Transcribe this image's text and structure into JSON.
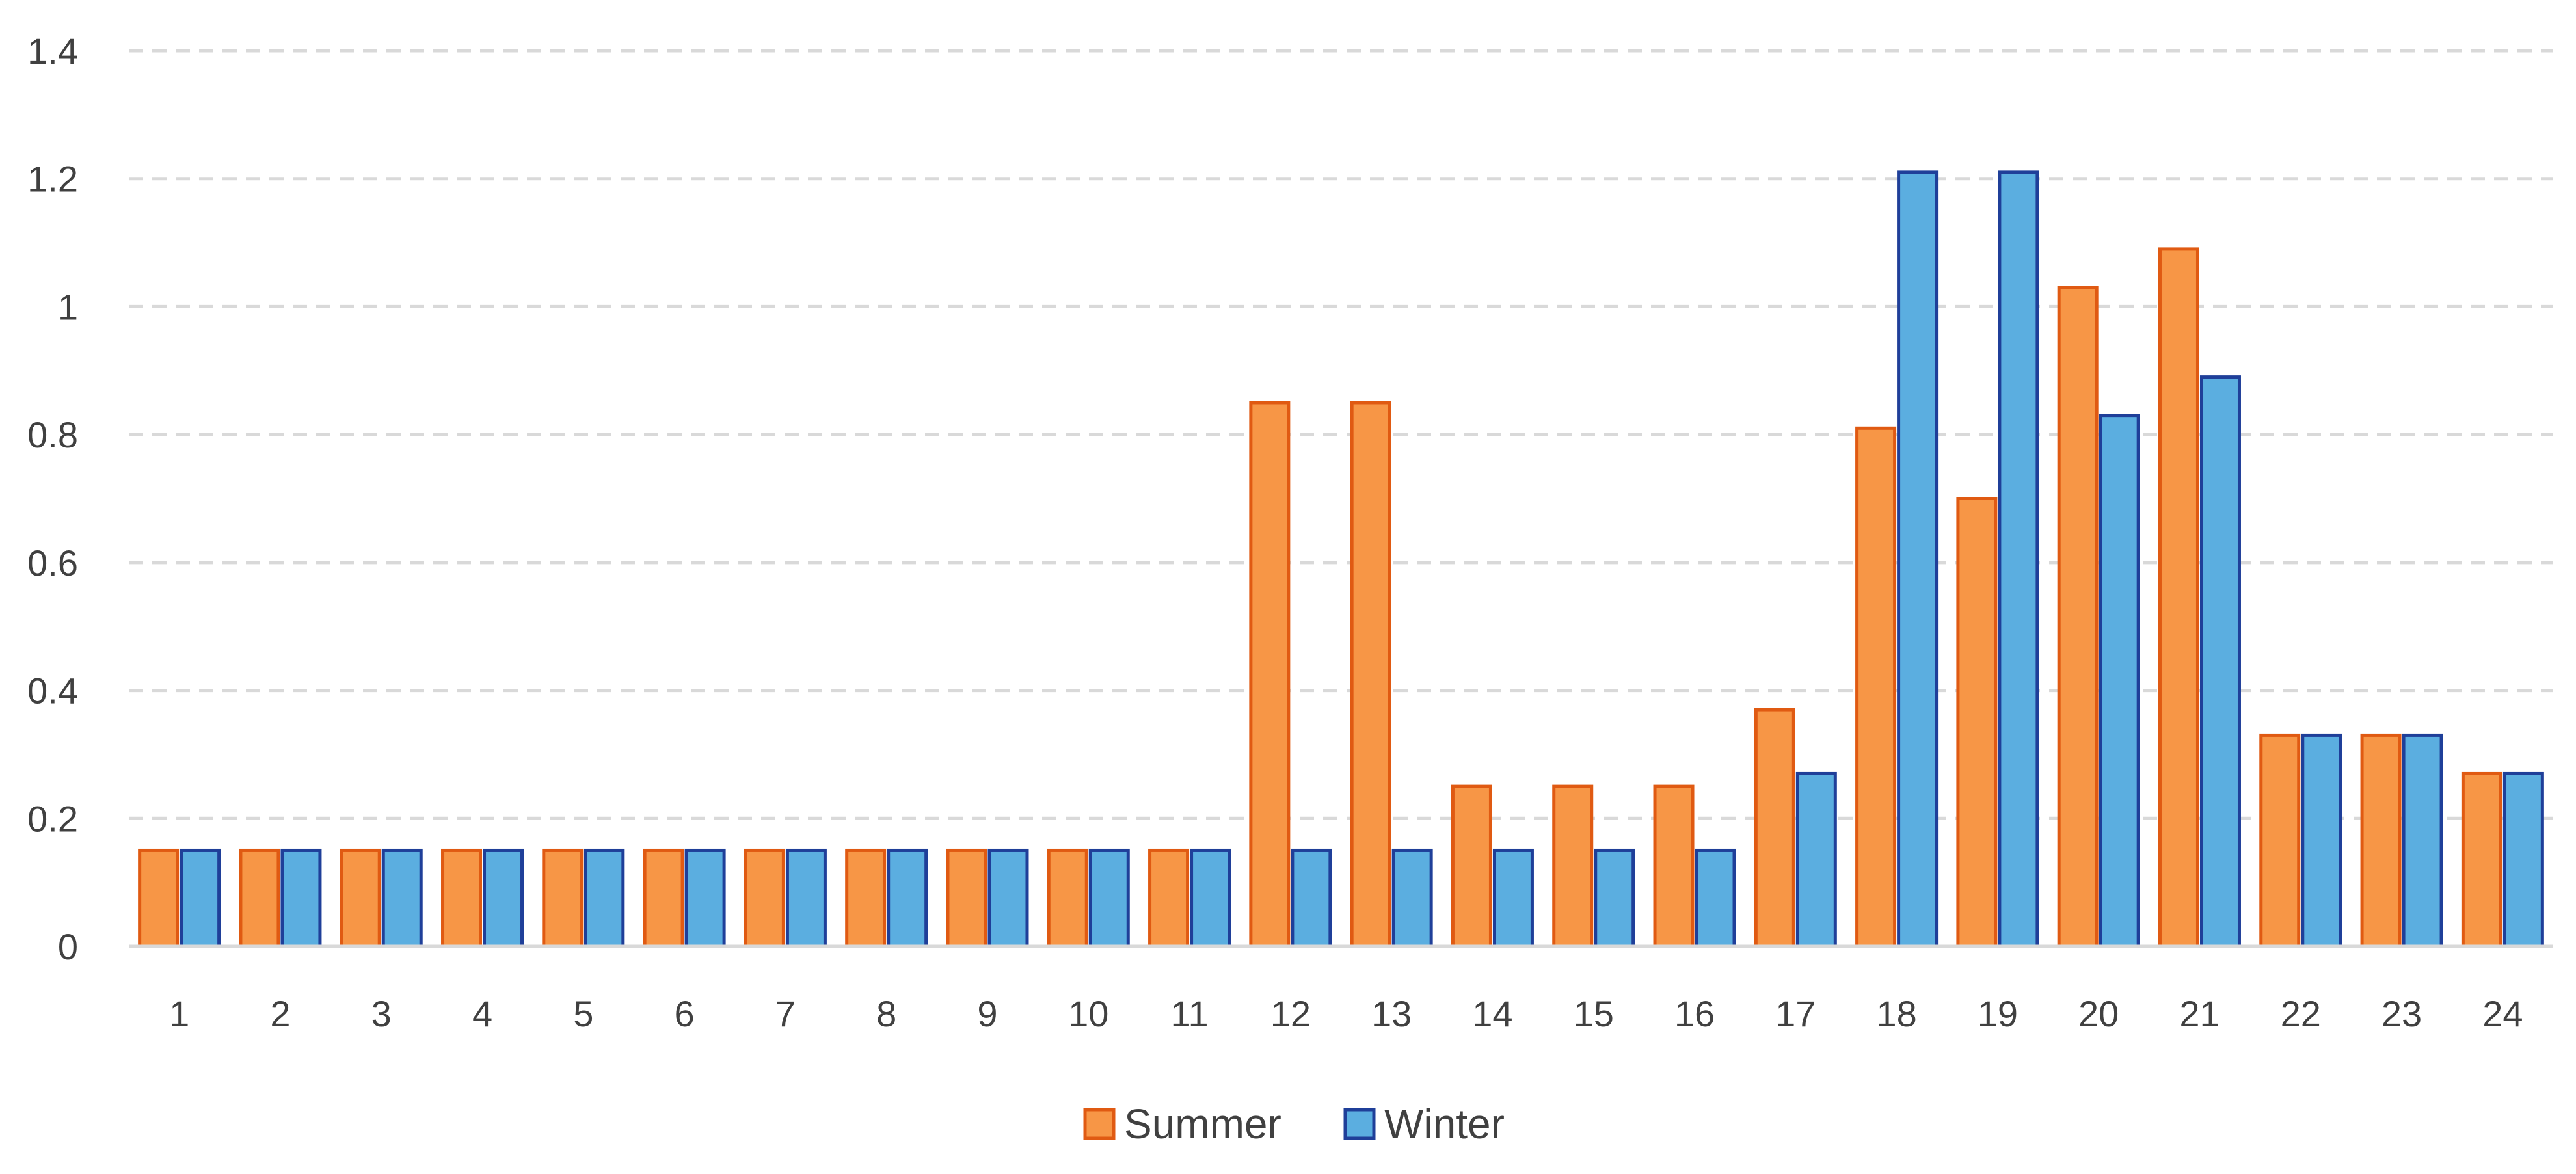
{
  "chart_data": {
    "type": "bar",
    "title": "",
    "xlabel": "",
    "ylabel": "",
    "categories": [
      "1",
      "2",
      "3",
      "4",
      "5",
      "6",
      "7",
      "8",
      "9",
      "10",
      "11",
      "12",
      "13",
      "14",
      "15",
      "16",
      "17",
      "18",
      "19",
      "20",
      "21",
      "22",
      "23",
      "24"
    ],
    "series": [
      {
        "name": "Summer",
        "color": "#F79646",
        "stroke": "#E05A12",
        "values": [
          0.15,
          0.15,
          0.15,
          0.15,
          0.15,
          0.15,
          0.15,
          0.15,
          0.15,
          0.15,
          0.15,
          0.85,
          0.85,
          0.25,
          0.25,
          0.25,
          0.37,
          0.81,
          0.7,
          1.03,
          1.09,
          0.33,
          0.33,
          0.27
        ]
      },
      {
        "name": "Winter",
        "color": "#5BAEE0",
        "stroke": "#1F3F99",
        "values": [
          0.15,
          0.15,
          0.15,
          0.15,
          0.15,
          0.15,
          0.15,
          0.15,
          0.15,
          0.15,
          0.15,
          0.15,
          0.15,
          0.15,
          0.15,
          0.15,
          0.27,
          1.21,
          1.21,
          0.83,
          0.89,
          0.33,
          0.33,
          0.27
        ]
      }
    ],
    "ylim": [
      0,
      1.4
    ],
    "yticks": [
      "0",
      "0.2",
      "0.4",
      "0.6",
      "0.8",
      "1",
      "1.2",
      "1.4"
    ],
    "grid": true,
    "legend_position": "bottom-center"
  }
}
